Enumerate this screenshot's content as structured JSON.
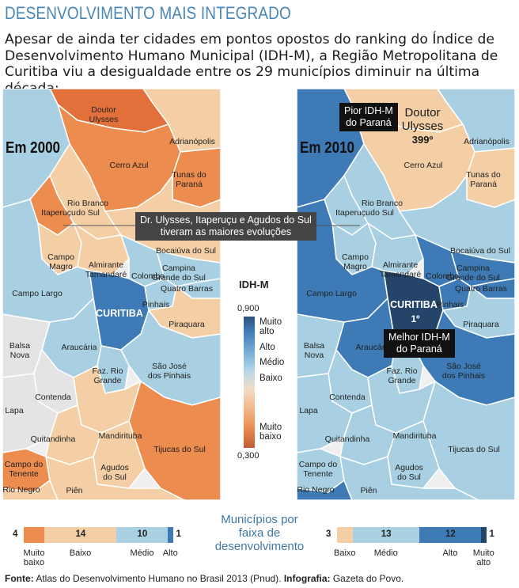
{
  "title": "DESENVOLVIMENTO MAIS INTEGRADO",
  "intro": "Apesar de ainda ter cidades em pontos opostos do ranking do Índice de Desenvolvimento Humano Municipal (IDH-M), a Região Metropolitana de Curitiba viu a desigualdade entre os 29 municípios diminuir na última década:",
  "colors": {
    "muito_baixo": "#ec8c4e",
    "baixo": "#f4cfa6",
    "medio": "#a9d0e2",
    "alto": "#3d7ab6",
    "muito_alto": "#24446a",
    "no_data": "#e4e4e4",
    "title_blue": "#4a86b6"
  },
  "map2000": {
    "year_label": "Em 2000",
    "municipalities": [
      {
        "name": "Doutor Ulysses",
        "label": "Doutor\nUlysses"
      },
      {
        "name": "Adrianópolis",
        "label": "Adrianópolis"
      },
      {
        "name": "Cerro Azul",
        "label": "Cerro Azul"
      },
      {
        "name": "Tunas do Paraná",
        "label": "Tunas do\nParaná"
      },
      {
        "name": "Rio Branco do Sul",
        "label": "Rio Branco\ndo Sul"
      },
      {
        "name": "Itaperuçu",
        "label": "Itaperuçu"
      },
      {
        "name": "Bocaiúva do Sul",
        "label": "Bocaiúva do Sul"
      },
      {
        "name": "Campo Magro",
        "label": "Campo\nMagro"
      },
      {
        "name": "Almirante Tamandaré",
        "label": "Almirante\nTamandaré"
      },
      {
        "name": "Colombo",
        "label": "Colombo"
      },
      {
        "name": "Campina Grande do Sul",
        "label": "Campina\nGrande do Sul"
      },
      {
        "name": "Quatro Barras",
        "label": "Quatro Barras"
      },
      {
        "name": "Campo Largo",
        "label": "Campo Largo"
      },
      {
        "name": "Curitiba",
        "label": "CURITIBA"
      },
      {
        "name": "Pinhais",
        "label": "Pinhais"
      },
      {
        "name": "Piraquara",
        "label": "Piraquara"
      },
      {
        "name": "Balsa Nova",
        "label": "Balsa\nNova"
      },
      {
        "name": "Araucária",
        "label": "Araucária"
      },
      {
        "name": "São José dos Pinhais",
        "label": "São José\ndos Pinhais"
      },
      {
        "name": "Fazenda Rio Grande",
        "label": "Faz. Rio\nGrande"
      },
      {
        "name": "Contenda",
        "label": "Contenda"
      },
      {
        "name": "Lapa",
        "label": "Lapa"
      },
      {
        "name": "Mandirituba",
        "label": "Mandirituba"
      },
      {
        "name": "Quitandinha",
        "label": "Quitandinha"
      },
      {
        "name": "Tijucas do Sul",
        "label": "Tijucas do Sul"
      },
      {
        "name": "Campo do Tenente",
        "label": "Campo do\nTenente"
      },
      {
        "name": "Agudos do Sul",
        "label": "Agudos\ndo Sul"
      },
      {
        "name": "Rio Negro",
        "label": "Rio Negro"
      },
      {
        "name": "Piên",
        "label": "Piên"
      }
    ]
  },
  "map2010": {
    "year_label": "Em 2010",
    "worst_box": "Pior IDH-M\ndo Paraná",
    "worst_name": "Doutor\nUlysses",
    "worst_rank": "399º",
    "best_box": "Melhor IDH-M\ndo Paraná",
    "best_rank": "1º"
  },
  "callout": "Dr. Ulysses, Itaperuçu e Agudos do Sul\ntiveram as maiores evoluções",
  "legend": {
    "title": "IDH-M",
    "max": "0,900",
    "min": "0,300",
    "labels": [
      "Muito\nalto",
      "Alto",
      "Médio",
      "Baixo",
      "Muito\nbaixo"
    ]
  },
  "distribution": {
    "title": "Municípios por faixa de desenvolvimento",
    "y2000": [
      {
        "band": "Muito baixo",
        "count": 4
      },
      {
        "band": "Baixo",
        "count": 14
      },
      {
        "band": "Médio",
        "count": 10
      },
      {
        "band": "Alto",
        "count": 1
      }
    ],
    "y2010": [
      {
        "band": "Baixo",
        "count": 3
      },
      {
        "band": "Médio",
        "count": 13
      },
      {
        "band": "Alto",
        "count": 12
      },
      {
        "band": "Muito alto",
        "count": 1
      }
    ],
    "labels2000": [
      "Muito\nbaixo",
      "Baixo",
      "Médio",
      "Alto"
    ],
    "labels2010": [
      "Baixo",
      "Médio",
      "Alto",
      "Muito\nalto"
    ]
  },
  "source": {
    "prefix": "Fonte:",
    "text": " Atlas do Desenvolvimento Humano no Brasil 2013 (Pnud). ",
    "infog_prefix": "Infografia:",
    "infog_text": " Gazeta do Povo."
  }
}
